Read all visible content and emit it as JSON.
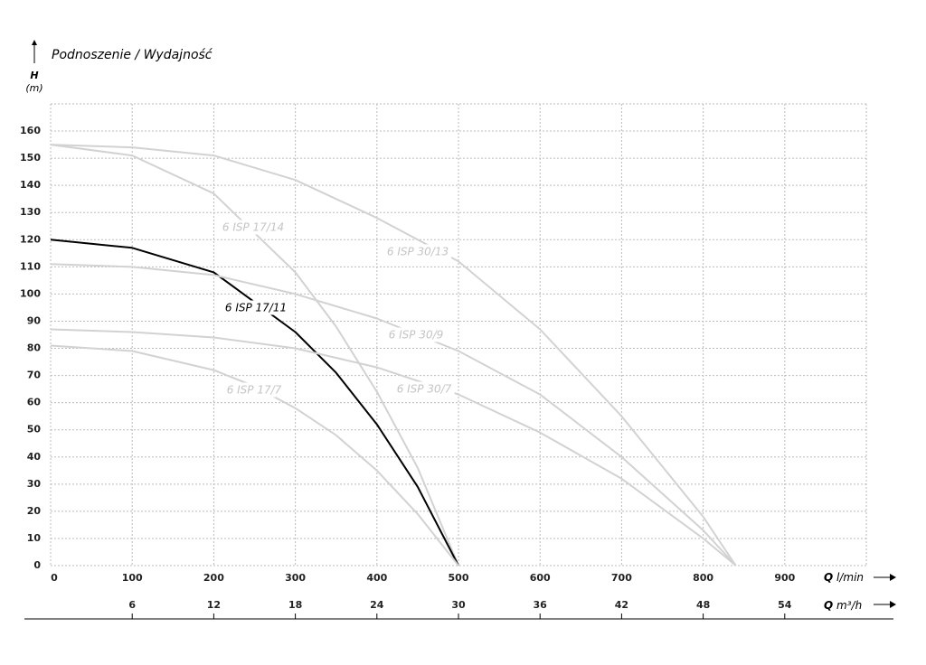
{
  "chart_data": {
    "type": "line",
    "title": "Podnoszenie / Wydajność",
    "y_label": {
      "symbol": "H",
      "unit": "(m)"
    },
    "x_label": {
      "symbol": "Q",
      "unit": "l/min"
    },
    "x2_label": {
      "symbol": "Q",
      "unit": "m³/h"
    },
    "xlim": [
      0,
      1000
    ],
    "xticks": [
      0,
      100,
      200,
      300,
      400,
      500,
      600,
      700,
      800,
      900
    ],
    "x2lim": [
      0,
      60
    ],
    "x2ticks": [
      6,
      12,
      18,
      24,
      30,
      36,
      42,
      48,
      54
    ],
    "ylim": [
      0,
      170
    ],
    "yticks": [
      0,
      10,
      20,
      30,
      40,
      50,
      60,
      70,
      80,
      90,
      100,
      110,
      120,
      130,
      140,
      150,
      160
    ],
    "grid": true,
    "series": [
      {
        "name": "6 ISP 17/14",
        "color": "#d2d2d2",
        "x": [
          0,
          100,
          200,
          300,
          350,
          400,
          450,
          500
        ],
        "values": [
          155,
          151,
          137,
          108,
          88,
          64,
          36,
          0
        ]
      },
      {
        "name": "6 ISP 17/11",
        "color": "#000000",
        "x": [
          0,
          100,
          200,
          250,
          300,
          350,
          400,
          450,
          500
        ],
        "values": [
          120,
          117,
          108,
          97,
          86,
          71,
          52,
          29,
          0
        ]
      },
      {
        "name": "6 ISP 17/7",
        "color": "#d2d2d2",
        "x": [
          0,
          100,
          200,
          250,
          300,
          350,
          400,
          450,
          500
        ],
        "values": [
          81,
          79,
          72,
          66,
          58,
          48,
          35,
          19,
          0
        ]
      },
      {
        "name": "6 ISP 30/13",
        "color": "#d2d2d2",
        "x": [
          0,
          100,
          200,
          300,
          400,
          500,
          600,
          700,
          800,
          840
        ],
        "values": [
          155,
          154,
          151,
          142,
          128,
          112,
          87,
          55,
          18,
          0
        ]
      },
      {
        "name": "6 ISP 30/9",
        "color": "#d2d2d2",
        "x": [
          0,
          100,
          200,
          300,
          400,
          500,
          600,
          700,
          800,
          840
        ],
        "values": [
          111,
          110,
          107,
          100,
          91,
          79,
          63,
          40,
          13,
          0
        ]
      },
      {
        "name": "6 ISP 30/7",
        "color": "#d2d2d2",
        "x": [
          0,
          100,
          200,
          300,
          400,
          500,
          600,
          700,
          800,
          840
        ],
        "values": [
          87,
          86,
          84,
          80,
          73,
          63,
          49,
          32,
          10,
          0
        ]
      }
    ]
  }
}
